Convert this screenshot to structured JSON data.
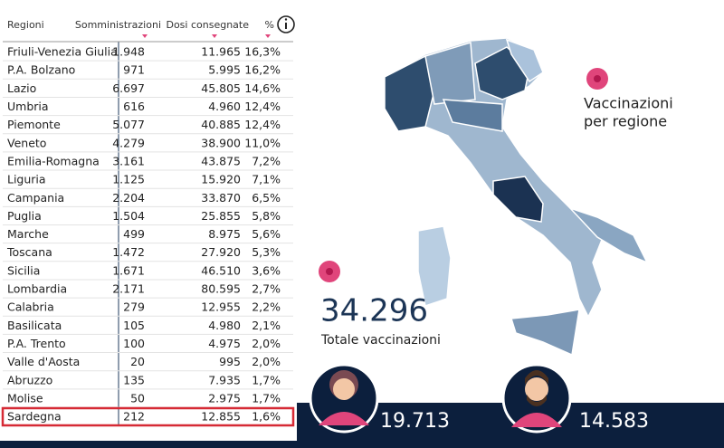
{
  "table": {
    "headers": [
      "Regioni",
      "Somministrazioni",
      "Dosi consegnate",
      "%"
    ],
    "rows": [
      [
        "Friuli-Venezia Giulia",
        "1.948",
        "11.965",
        "16,3%"
      ],
      [
        "P.A. Bolzano",
        "971",
        "5.995",
        "16,2%"
      ],
      [
        "Lazio",
        "6.697",
        "45.805",
        "14,6%"
      ],
      [
        "Umbria",
        "616",
        "4.960",
        "12,4%"
      ],
      [
        "Piemonte",
        "5.077",
        "40.885",
        "12,4%"
      ],
      [
        "Veneto",
        "4.279",
        "38.900",
        "11,0%"
      ],
      [
        "Emilia-Romagna",
        "3.161",
        "43.875",
        "7,2%"
      ],
      [
        "Liguria",
        "1.125",
        "15.920",
        "7,1%"
      ],
      [
        "Campania",
        "2.204",
        "33.870",
        "6,5%"
      ],
      [
        "Puglia",
        "1.504",
        "25.855",
        "5,8%"
      ],
      [
        "Marche",
        "499",
        "8.975",
        "5,6%"
      ],
      [
        "Toscana",
        "1.472",
        "27.920",
        "5,3%"
      ],
      [
        "Sicilia",
        "1.671",
        "46.510",
        "3,6%"
      ],
      [
        "Lombardia",
        "2.171",
        "80.595",
        "2,7%"
      ],
      [
        "Calabria",
        "279",
        "12.955",
        "2,2%"
      ],
      [
        "Basilicata",
        "105",
        "4.980",
        "2,1%"
      ],
      [
        "P.A. Trento",
        "100",
        "4.975",
        "2,0%"
      ],
      [
        "Valle d'Aosta",
        "20",
        "995",
        "2,0%"
      ],
      [
        "Abruzzo",
        "135",
        "7.935",
        "1,7%"
      ],
      [
        "Molise",
        "50",
        "2.975",
        "1,7%"
      ],
      [
        "Sardegna",
        "212",
        "12.855",
        "1,6%"
      ]
    ]
  },
  "map_title_line1": "Vaccinazioni",
  "map_title_line2": "per regione",
  "total": {
    "value": "34.296",
    "label": "Totale vaccinazioni"
  },
  "women": "19.713",
  "men": "14.583"
}
